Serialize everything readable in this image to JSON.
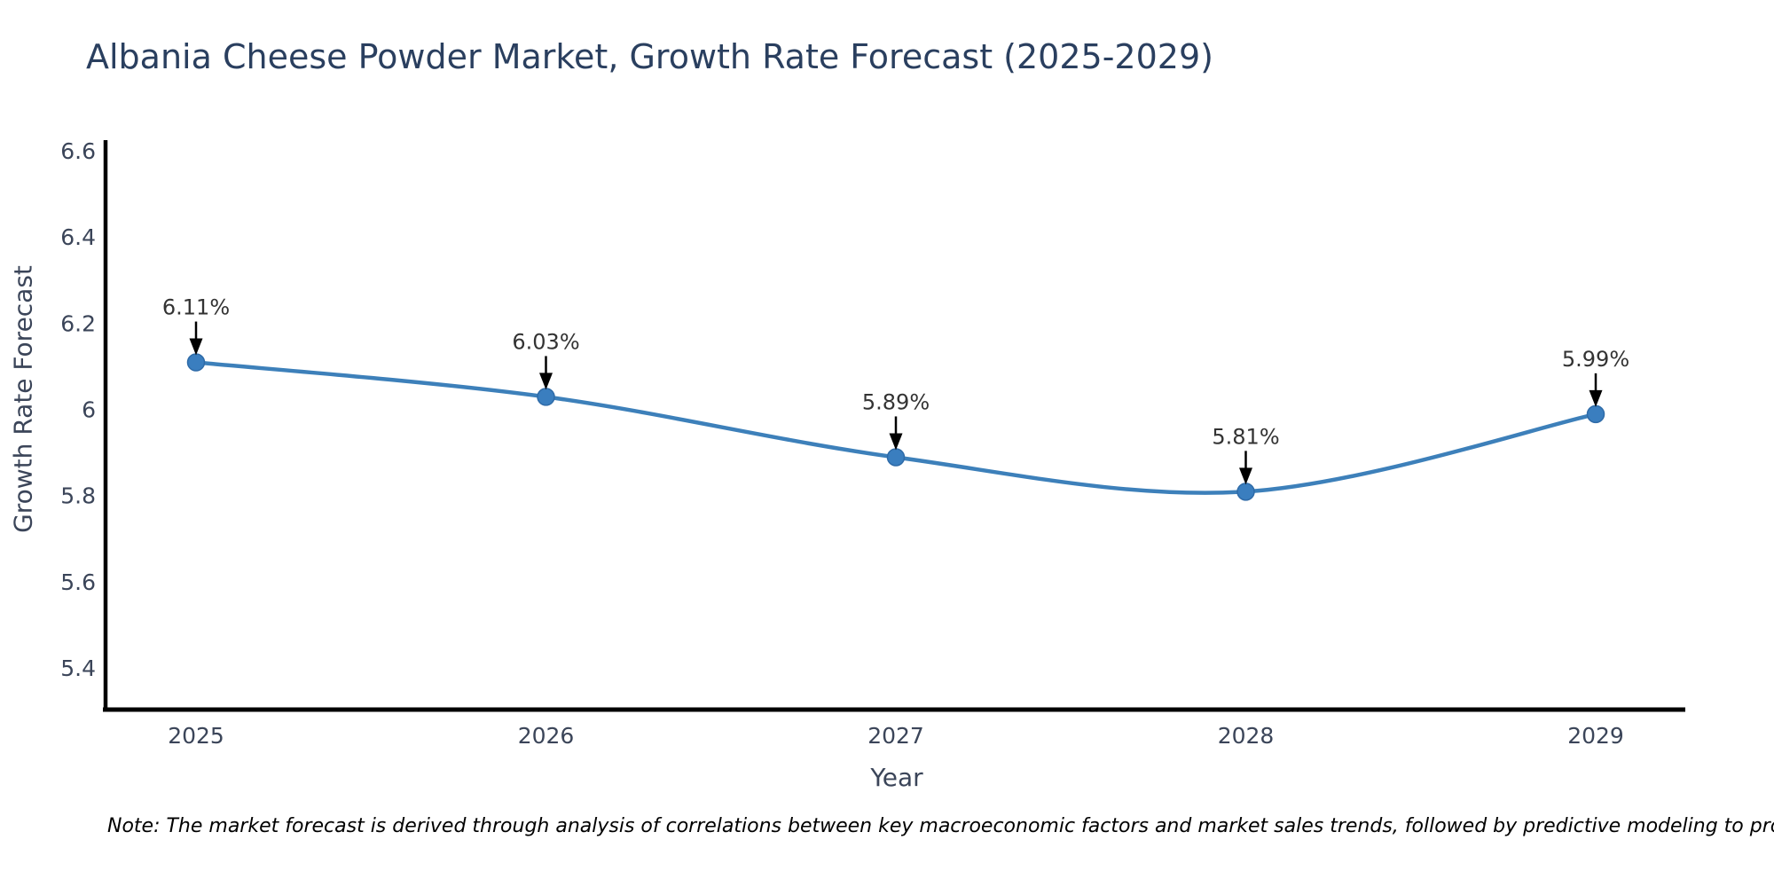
{
  "title": "Albania Cheese Powder Market, Growth Rate Forecast (2025-2029)",
  "note": "Note: The market forecast is derived through analysis of correlations between key macroeconomic factors and market sales trends, followed by predictive modeling to project future sales",
  "chart_data": {
    "type": "line",
    "title": "Albania Cheese Powder Market, Growth Rate Forecast (2025-2029)",
    "xlabel": "Year",
    "ylabel": "Growth Rate Forecast",
    "x": [
      2025,
      2026,
      2027,
      2028,
      2029
    ],
    "values": [
      6.11,
      6.03,
      5.89,
      5.81,
      5.99
    ],
    "point_labels": [
      "6.11%",
      "6.03%",
      "5.89%",
      "5.81%",
      "5.99%"
    ],
    "x_tick_labels": [
      "2025",
      "2026",
      "2027",
      "2028",
      "2029"
    ],
    "y_tick_labels": [
      "6.6",
      "6.4",
      "6.2",
      "6",
      "5.8",
      "5.6",
      "5.4"
    ],
    "y_tick_values": [
      6.6,
      6.4,
      6.2,
      6.0,
      5.8,
      5.6,
      5.4
    ],
    "xlim": [
      2024.74,
      2029.27
    ],
    "ylim": [
      5.3,
      6.62
    ],
    "grid": false,
    "legend_position": "none",
    "smooth": true,
    "line_color": "#3d80ba",
    "marker_color": "#3a7ebf",
    "marker_edge_color": "#2f6ba8",
    "axis_color": "#000000",
    "arrow_color": "#000000",
    "label_color": "#3b4559",
    "title_color": "#2a3f5f"
  }
}
